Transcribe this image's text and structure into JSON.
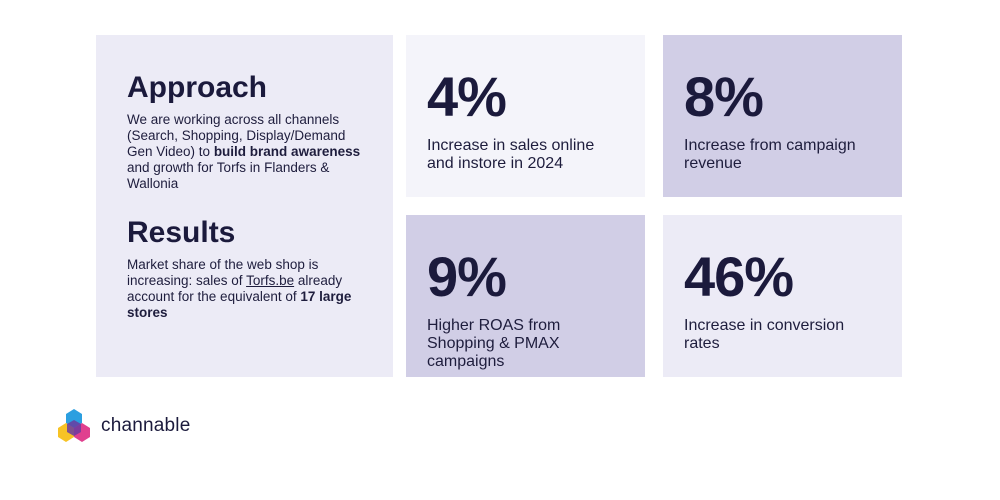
{
  "approach": {
    "heading": "Approach",
    "text_1": "We are working across all channels (Search, Shopping, Display/Demand Gen Video) to ",
    "text_bold": "build brand awareness",
    "text_2": " and growth for Torfs in Flanders & Wallonia"
  },
  "results": {
    "heading": "Results",
    "text_1": "Market share of the web shop is increasing: sales of ",
    "link": "Torfs.be",
    "text_2": " already account for the equivalent of ",
    "text_bold": "17 large stores"
  },
  "stats": [
    {
      "value": "4%",
      "label": "Increase in sales online and instore in 2024"
    },
    {
      "value": "8%",
      "label": "Increase from campaign revenue"
    },
    {
      "value": "9%",
      "label": "Higher ROAS from Shopping & PMAX campaigns"
    },
    {
      "value": "46%",
      "label": "Increase in conversion rates"
    }
  ],
  "brand": {
    "name": "channable",
    "colors": {
      "blue": "#2b9fe0",
      "yellow": "#f7c325",
      "pink": "#e0408f",
      "purple": "#6a3ca0"
    }
  }
}
